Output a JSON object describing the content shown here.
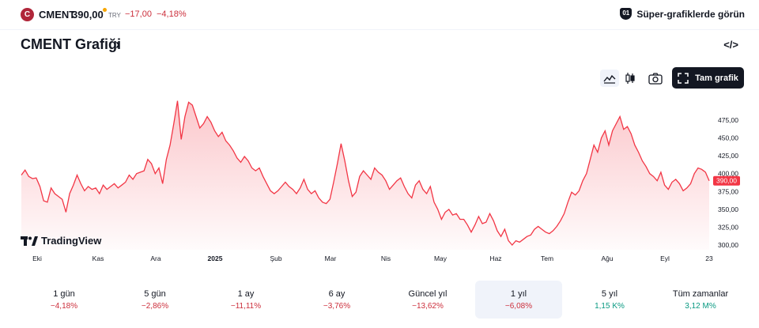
{
  "header": {
    "logo_letter": "C",
    "ticker": "CMENT",
    "price": "390,00",
    "currency": "TRY",
    "change_abs": "−17,00",
    "change_pct": "−4,18%",
    "super_chart_link": "Süper-grafiklerde görün",
    "super_icon": "01"
  },
  "title": {
    "text": "CMENT Grafiği",
    "arrow": "›",
    "embed_icon": "</>"
  },
  "toolbar": {
    "area_icon": "area-chart-icon",
    "candle_icon": "candlestick-icon",
    "camera_icon": "camera-icon",
    "fullscreen_label": "Tam grafik"
  },
  "chart_data": {
    "type": "area",
    "title": "",
    "x_labels": [
      "Eki",
      "Kas",
      "Ara",
      "2025",
      "Şub",
      "Mar",
      "Nis",
      "May",
      "Haz",
      "Tem",
      "Ağu",
      "Eyl",
      "23"
    ],
    "y_ticks": [
      "475,00",
      "450,00",
      "425,00",
      "400,00",
      "375,00",
      "350,00",
      "325,00",
      "300,00"
    ],
    "ylim": [
      295,
      490
    ],
    "last_price_label": "390,00",
    "line_color": "#f23645",
    "watermark": "TradingView",
    "series": [
      {
        "values": [
          398,
          405,
          396,
          393,
          394,
          382,
          362,
          360,
          380,
          372,
          368,
          364,
          346,
          372,
          384,
          398,
          386,
          376,
          382,
          378,
          380,
          372,
          384,
          378,
          382,
          386,
          380,
          384,
          388,
          398,
          392,
          400,
          402,
          404,
          420,
          414,
          400,
          408,
          386,
          420,
          440,
          470,
          502,
          448,
          480,
          500,
          496,
          480,
          464,
          470,
          480,
          472,
          460,
          452,
          458,
          446,
          440,
          432,
          422,
          416,
          424,
          418,
          408,
          404,
          408,
          396,
          386,
          376,
          372,
          376,
          382,
          388,
          382,
          378,
          372,
          380,
          392,
          378,
          372,
          376,
          366,
          360,
          358,
          364,
          388,
          414,
          442,
          418,
          390,
          368,
          374,
          396,
          404,
          398,
          392,
          408,
          402,
          398,
          390,
          378,
          384,
          390,
          394,
          382,
          372,
          366,
          384,
          390,
          378,
          372,
          382,
          360,
          350,
          336,
          346,
          350,
          342,
          344,
          336,
          336,
          328,
          318,
          328,
          340,
          330,
          332,
          344,
          334,
          320,
          312,
          322,
          306,
          300,
          306,
          304,
          308,
          312,
          314,
          322,
          326,
          322,
          318,
          316,
          320,
          326,
          334,
          344,
          360,
          374,
          370,
          376,
          390,
          400,
          420,
          440,
          430,
          450,
          460,
          440,
          460,
          470,
          480,
          462,
          466,
          456,
          440,
          430,
          418,
          410,
          400,
          396,
          390,
          402,
          384,
          378,
          388,
          392,
          386,
          376,
          380,
          386,
          400,
          408,
          406,
          402,
          390
        ]
      }
    ]
  },
  "periods": [
    {
      "label": "1 gün",
      "value": "−4,18%",
      "dir": "neg"
    },
    {
      "label": "5 gün",
      "value": "−2,86%",
      "dir": "neg"
    },
    {
      "label": "1 ay",
      "value": "−11,11%",
      "dir": "neg"
    },
    {
      "label": "6 ay",
      "value": "−3,76%",
      "dir": "neg"
    },
    {
      "label": "Güncel yıl",
      "value": "−13,62%",
      "dir": "neg"
    },
    {
      "label": "1 yıl",
      "value": "−6,08%",
      "dir": "neg",
      "active": true
    },
    {
      "label": "5 yıl",
      "value": "1,15 K%",
      "dir": "pos"
    },
    {
      "label": "Tüm zamanlar",
      "value": "3,12 M%",
      "dir": "pos"
    }
  ]
}
